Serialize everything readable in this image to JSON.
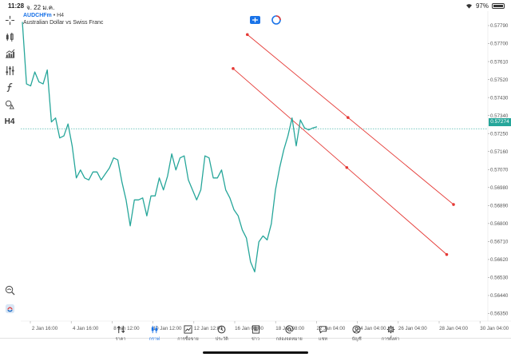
{
  "status_bar": {
    "time": "11:28",
    "date": "จ. 22 ม.ค.",
    "battery": "97%"
  },
  "chart_header": {
    "symbol": "AUDCHFm",
    "timeframe": "• H4",
    "description": "Australian Dollar vs Swiss Franc"
  },
  "toolbar": [
    {
      "name": "crosshair-icon"
    },
    {
      "name": "chart-type-icon"
    },
    {
      "name": "indicators-icon"
    },
    {
      "name": "settings-sliders-icon"
    },
    {
      "name": "function-icon"
    },
    {
      "name": "shapes-icon"
    },
    {
      "name": "timeframe-button",
      "label": "H4"
    },
    {
      "name": "zoom-icon"
    },
    {
      "name": "broker-logo-icon"
    }
  ],
  "colors": {
    "price_line": "#26a69a",
    "trendline": "#e53935",
    "current_price_tag": "#26a69a",
    "active_tab": "#1a73e8"
  },
  "chart_data": {
    "type": "line",
    "title": "AUDCHFm • H4",
    "subtitle": "Australian Dollar vs Swiss Franc",
    "xlabel": "",
    "ylabel": "",
    "x_tick_labels": [
      "2 Jan 16:00",
      "4 Jan 16:00",
      "8 Jan 12:00",
      "10 Jan 12:00",
      "12 Jan 12:00",
      "16 Jan 08:00",
      "18 Jan 08:00",
      "22 Jan 04:00",
      "24 Jan 04:00",
      "26 Jan 04:00",
      "28 Jan 04:00",
      "30 Jan 04:00"
    ],
    "y_tick_labels": [
      "0.57790",
      "0.57700",
      "0.57610",
      "0.57520",
      "0.57430",
      "0.57340",
      "0.57250",
      "0.57160",
      "0.57070",
      "0.56980",
      "0.56890",
      "0.56800",
      "0.56710",
      "0.56620",
      "0.56530",
      "0.56440",
      "0.56350"
    ],
    "ylim": [
      0.5632,
      0.5783
    ],
    "current_price": "0.57274",
    "price_series": {
      "name": "AUDCHFm",
      "values": [
        0.57808,
        0.57498,
        0.57488,
        0.57558,
        0.57508,
        0.57498,
        0.57568,
        0.57308,
        0.57328,
        0.57228,
        0.57238,
        0.57298,
        0.57188,
        0.57028,
        0.57068,
        0.57028,
        0.57018,
        0.57058,
        0.57058,
        0.57018,
        0.57048,
        0.57078,
        0.57128,
        0.57118,
        0.57008,
        0.56918,
        0.56788,
        0.56918,
        0.56918,
        0.56928,
        0.56838,
        0.56938,
        0.56938,
        0.57028,
        0.56968,
        0.57038,
        0.57148,
        0.57068,
        0.57128,
        0.57138,
        0.57018,
        0.56968,
        0.56918,
        0.56968,
        0.57138,
        0.57128,
        0.57028,
        0.57028,
        0.57068,
        0.56968,
        0.56928,
        0.56868,
        0.56838,
        0.56768,
        0.56728,
        0.56608,
        0.56558,
        0.56708,
        0.56738,
        0.56718,
        0.56798,
        0.56968,
        0.57078,
        0.57168,
        0.57238,
        0.57328,
        0.57188,
        0.57318,
        0.57278,
        0.57268,
        0.57278,
        0.57284
      ]
    },
    "trendlines": [
      {
        "x": [
          "16 Jan 04:00",
          "28 Jan 04:00"
        ],
        "y": [
          0.57745,
          0.56895
        ],
        "marker_y": 0.5733
      },
      {
        "x": [
          "14 Jan 20:00",
          "27 Jan 20:00"
        ],
        "y": [
          0.57575,
          0.56645
        ],
        "marker_y": 0.5708
      }
    ]
  },
  "bottom_nav": [
    {
      "name": "nav-quotes",
      "icon": "arrows-icon",
      "label": "ราคา",
      "active": false
    },
    {
      "name": "nav-chart",
      "icon": "candles-icon",
      "label": "กราฟ",
      "active": true
    },
    {
      "name": "nav-trade",
      "icon": "trade-icon",
      "label": "การซื้อขาย",
      "active": false
    },
    {
      "name": "nav-history",
      "icon": "history-icon",
      "label": "ประวัติ",
      "active": false
    },
    {
      "name": "nav-news",
      "icon": "news-icon",
      "label": "ข่าว",
      "active": false
    },
    {
      "name": "nav-mailbox",
      "icon": "at-icon",
      "label": "กล่องจดหมาย",
      "active": false
    },
    {
      "name": "nav-chat",
      "icon": "chat-icon",
      "label": "แชท",
      "active": false
    },
    {
      "name": "nav-account",
      "icon": "account-icon",
      "label": "บัญชี",
      "active": false
    },
    {
      "name": "nav-settings",
      "icon": "gear-icon",
      "label": "การตั้งค่า",
      "active": false
    }
  ]
}
